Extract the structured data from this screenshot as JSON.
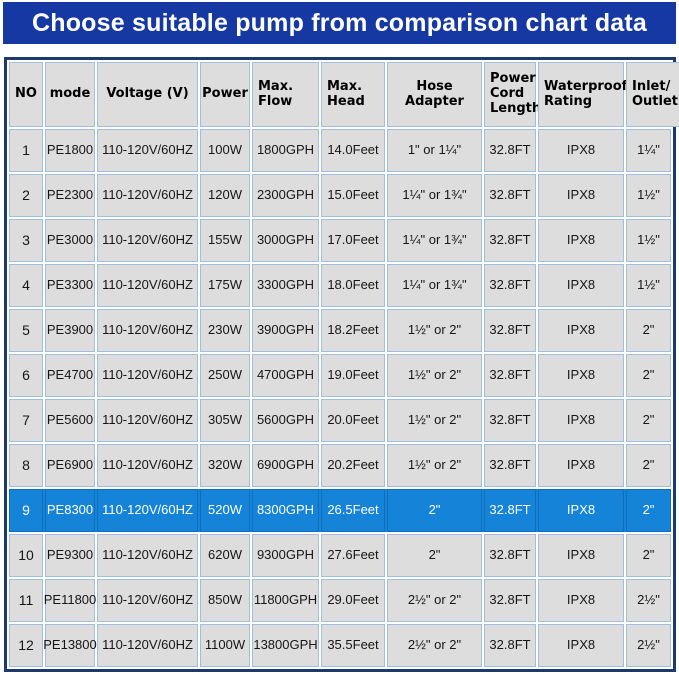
{
  "banner": {
    "title": "Choose suitable pump from comparison chart data",
    "bg": "#1538A2",
    "text_color": "#FFFFFF"
  },
  "chart_data": {
    "type": "table",
    "title": "Choose suitable pump from comparison chart data",
    "columns": [
      {
        "key": "no",
        "label": "NO"
      },
      {
        "key": "mode",
        "label": "mode"
      },
      {
        "key": "voltage",
        "label": "Voltage (V)"
      },
      {
        "key": "power",
        "label": "Power"
      },
      {
        "key": "max_flow",
        "label": "Max. Flow"
      },
      {
        "key": "max_head",
        "label": "Max. Head"
      },
      {
        "key": "hose",
        "label": "Hose Adapter"
      },
      {
        "key": "cord",
        "label": "Power Cord Length"
      },
      {
        "key": "waterproof",
        "label": "Waterproof Rating"
      },
      {
        "key": "inlet",
        "label": "Inlet/ Outlet"
      }
    ],
    "rows": [
      [
        "1",
        "PE1800",
        "110-120V/60HZ",
        "100W",
        "1800GPH",
        "14.0Feet",
        "1\" or 1¼\"",
        "32.8FT",
        "IPX8",
        "1¼\""
      ],
      [
        "2",
        "PE2300",
        "110-120V/60HZ",
        "120W",
        "2300GPH",
        "15.0Feet",
        "1¼\" or 1¾\"",
        "32.8FT",
        "IPX8",
        "1½\""
      ],
      [
        "3",
        "PE3000",
        "110-120V/60HZ",
        "155W",
        "3000GPH",
        "17.0Feet",
        "1¼\" or 1¾\"",
        "32.8FT",
        "IPX8",
        "1½\""
      ],
      [
        "4",
        "PE3300",
        "110-120V/60HZ",
        "175W",
        "3300GPH",
        "18.0Feet",
        "1¼\" or 1¾\"",
        "32.8FT",
        "IPX8",
        "1½\""
      ],
      [
        "5",
        "PE3900",
        "110-120V/60HZ",
        "230W",
        "3900GPH",
        "18.2Feet",
        "1½\" or 2\"",
        "32.8FT",
        "IPX8",
        "2\""
      ],
      [
        "6",
        "PE4700",
        "110-120V/60HZ",
        "250W",
        "4700GPH",
        "19.0Feet",
        "1½\" or 2\"",
        "32.8FT",
        "IPX8",
        "2\""
      ],
      [
        "7",
        "PE5600",
        "110-120V/60HZ",
        "305W",
        "5600GPH",
        "20.0Feet",
        "1½\" or 2\"",
        "32.8FT",
        "IPX8",
        "2\""
      ],
      [
        "8",
        "PE6900",
        "110-120V/60HZ",
        "320W",
        "6900GPH",
        "20.2Feet",
        "1½\" or 2\"",
        "32.8FT",
        "IPX8",
        "2\""
      ],
      [
        "9",
        "PE8300",
        "110-120V/60HZ",
        "520W",
        "8300GPH",
        "26.5Feet",
        "2\"",
        "32.8FT",
        "IPX8",
        "2\""
      ],
      [
        "10",
        "PE9300",
        "110-120V/60HZ",
        "620W",
        "9300GPH",
        "27.6Feet",
        "2\"",
        "32.8FT",
        "IPX8",
        "2\""
      ],
      [
        "11",
        "PE11800",
        "110-120V/60HZ",
        "850W",
        "11800GPH",
        "29.0Feet",
        "2½\" or 2\"",
        "32.8FT",
        "IPX8",
        "2½\""
      ],
      [
        "12",
        "PE13800",
        "110-120V/60HZ",
        "1100W",
        "13800GPH",
        "35.5Feet",
        "2½\" or 2\"",
        "32.8FT",
        "IPX8",
        "2½\""
      ]
    ],
    "highlighted_row_no": "9",
    "legend_position": "none",
    "grid": true
  },
  "colors": {
    "cell_bg": "#DCDDDC",
    "grid_line": "#A2BEDD",
    "outer_border": "#1C3A6E",
    "highlight": "#1583D8",
    "highlight_line": "#0F6FBD"
  }
}
